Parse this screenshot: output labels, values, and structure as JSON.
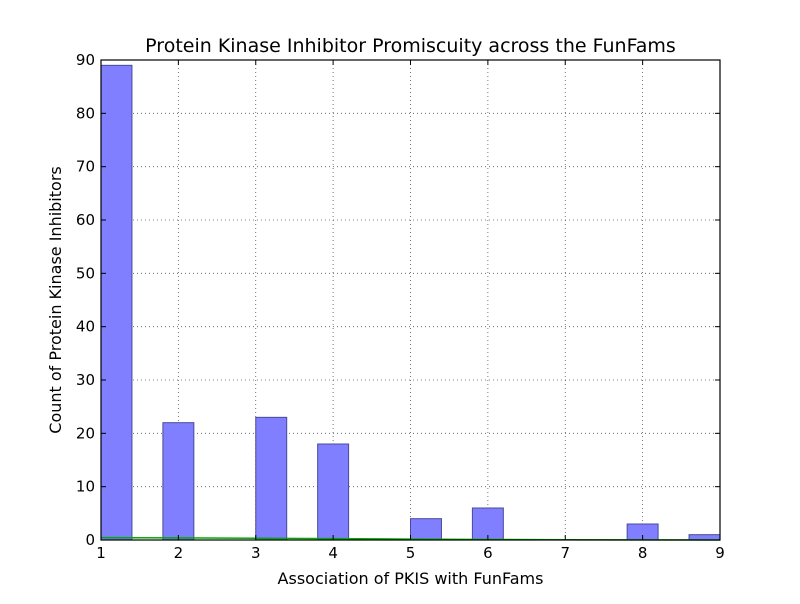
{
  "chart_data": {
    "type": "bar",
    "title": "Protein Kinase Inhibitor Promiscuity across the FunFams",
    "xlabel": "Association of PKIS with FunFams",
    "ylabel": "Count of Protein Kinase Inhibitors",
    "xlim": [
      1,
      9
    ],
    "ylim": [
      0,
      90
    ],
    "xticks": [
      "1",
      "2",
      "3",
      "4",
      "5",
      "6",
      "7",
      "8",
      "9"
    ],
    "yticks": [
      "0",
      "10",
      "20",
      "30",
      "40",
      "50",
      "60",
      "70",
      "80",
      "90"
    ],
    "grid": true,
    "bin_width": 0.4,
    "bins": [
      {
        "start": 1.0,
        "end": 1.4,
        "count": 89
      },
      {
        "start": 1.8,
        "end": 2.2,
        "count": 22
      },
      {
        "start": 3.0,
        "end": 3.4,
        "count": 23
      },
      {
        "start": 3.8,
        "end": 4.2,
        "count": 18
      },
      {
        "start": 5.0,
        "end": 5.4,
        "count": 4
      },
      {
        "start": 5.8,
        "end": 6.2,
        "count": 6
      },
      {
        "start": 7.8,
        "end": 8.2,
        "count": 3
      },
      {
        "start": 8.6,
        "end": 9.0,
        "count": 1
      }
    ],
    "fit_line": {
      "x": [
        1.0,
        2.0,
        3.0,
        4.0,
        5.0,
        6.0,
        7.0,
        8.0,
        9.0
      ],
      "y": [
        0.45,
        0.4,
        0.33,
        0.25,
        0.17,
        0.1,
        0.05,
        0.02,
        0.0
      ]
    },
    "colors": {
      "bar_fill": "#7f7fff",
      "bar_edge": "#4a4a9a",
      "fit_line": "#00aa00",
      "grid": "#555555"
    }
  }
}
